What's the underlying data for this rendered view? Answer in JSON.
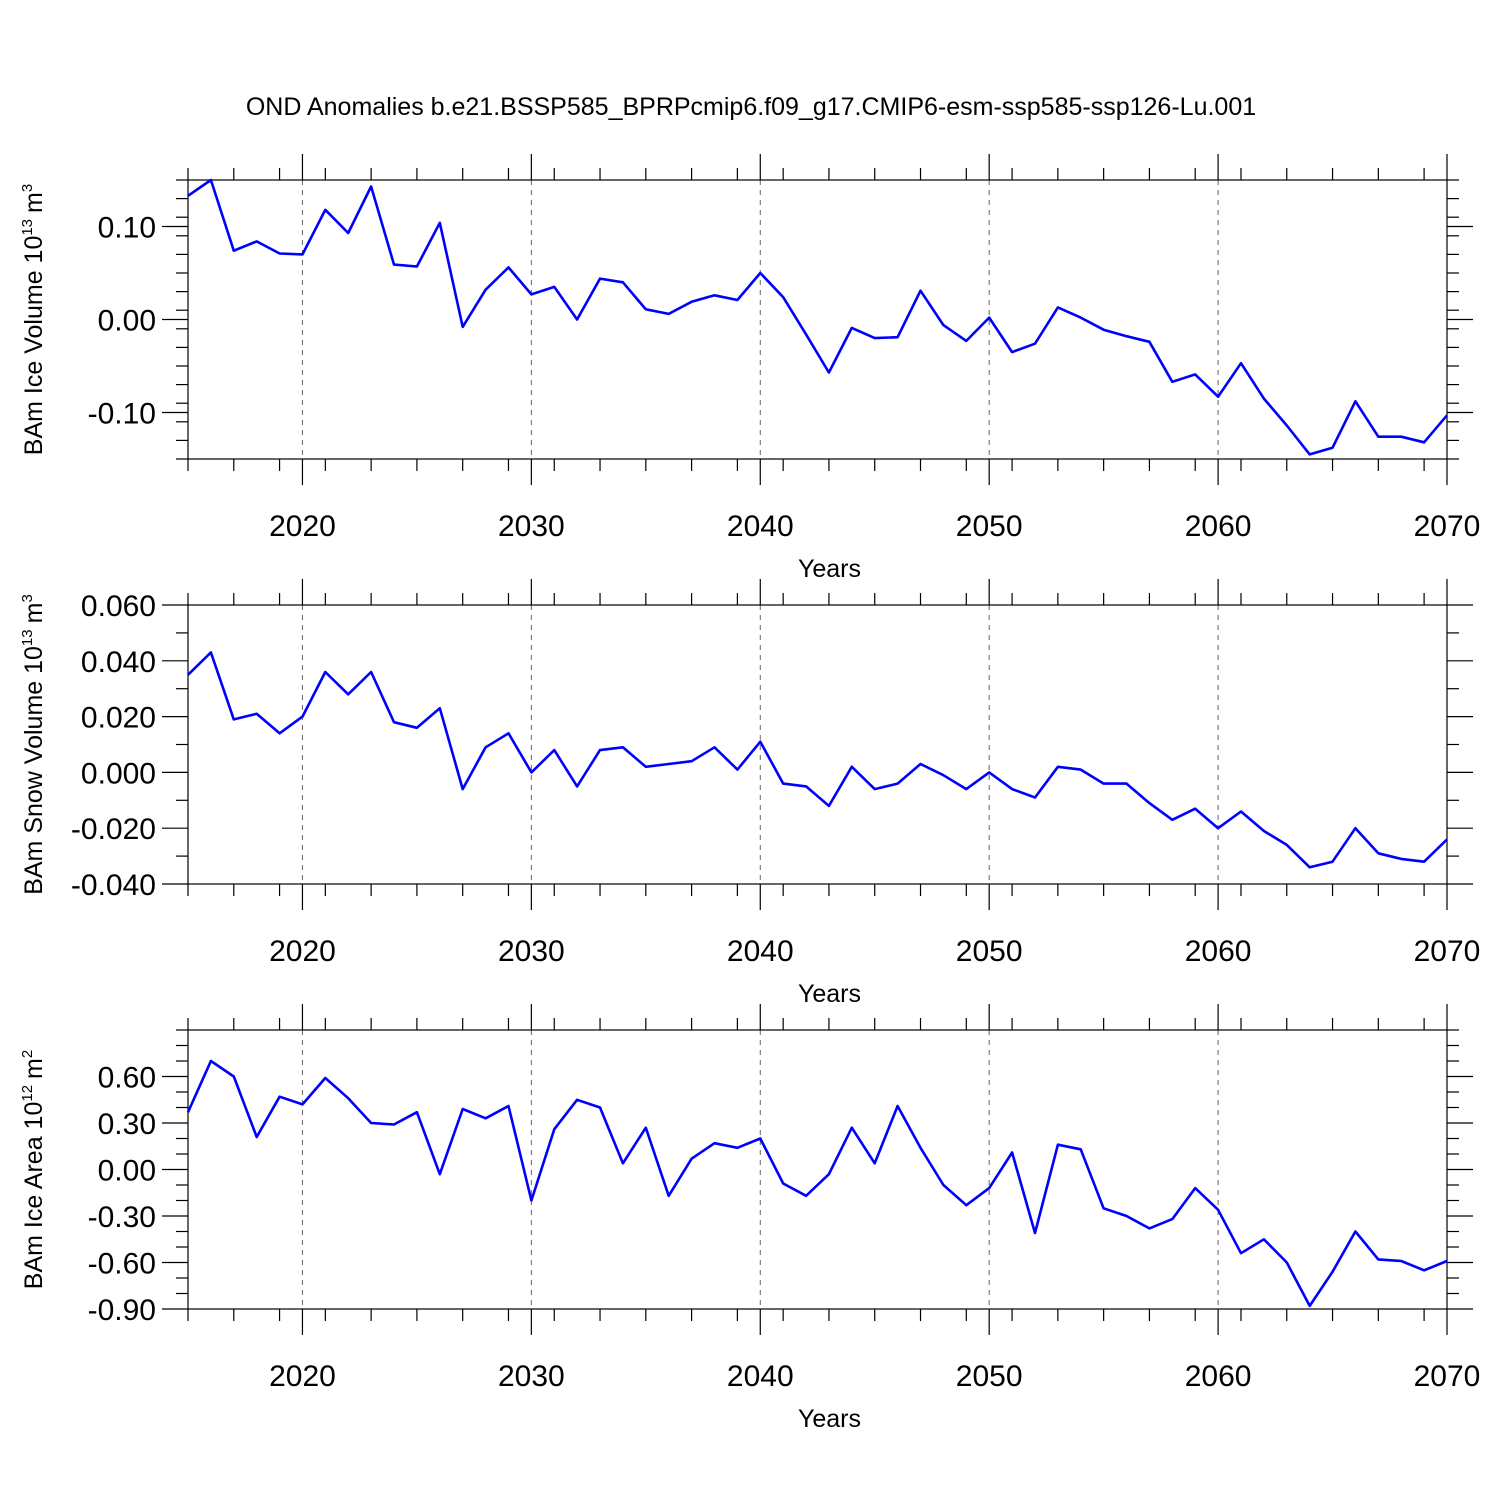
{
  "figure": {
    "title": "OND Anomalies b.e21.BSSP585_BPRPcmip6.f09_g17.CMIP6-esm-ssp585-ssp126-Lu.001"
  },
  "colors": {
    "line": "#0000ff",
    "frame": "#000000"
  },
  "chart_data": [
    {
      "type": "line",
      "title": "OND Anomalies b.e21.BSSP585_BPRPcmip6.f09_g17.CMIP6-esm-ssp585-ssp126-Lu.001",
      "xlabel": "Years",
      "ylabel": "BAm Ice Volume 10",
      "ylabel_exp": "13",
      "ylabel_unit": "m",
      "ylabel_unit_exp": "3",
      "xlim": [
        2015,
        2070
      ],
      "ylim": [
        -0.15,
        0.15
      ],
      "x_ticks": [
        2020,
        2030,
        2040,
        2050,
        2060,
        2070
      ],
      "y_ticks": [
        -0.1,
        0.0,
        0.1
      ],
      "y_tick_labels": [
        "-0.10",
        "0.00",
        "0.10"
      ],
      "y_minor_step": 0.02,
      "grid": "vertical dashed at major x ticks",
      "x": [
        2015,
        2016,
        2017,
        2018,
        2019,
        2020,
        2021,
        2022,
        2023,
        2024,
        2025,
        2026,
        2027,
        2028,
        2029,
        2030,
        2031,
        2032,
        2033,
        2034,
        2035,
        2036,
        2037,
        2038,
        2039,
        2040,
        2041,
        2042,
        2043,
        2044,
        2045,
        2046,
        2047,
        2048,
        2049,
        2050,
        2051,
        2052,
        2053,
        2054,
        2055,
        2056,
        2057,
        2058,
        2059,
        2060,
        2061,
        2062,
        2063,
        2064,
        2065,
        2066,
        2067,
        2068,
        2069,
        2070
      ],
      "series": [
        {
          "values": [
            0.133,
            0.15,
            0.074,
            0.084,
            0.071,
            0.07,
            0.118,
            0.093,
            0.143,
            0.059,
            0.057,
            0.104,
            -0.008,
            0.032,
            0.056,
            0.027,
            0.035,
            0.0,
            0.044,
            0.04,
            0.011,
            0.006,
            0.019,
            0.026,
            0.021,
            0.05,
            0.024,
            -0.016,
            -0.057,
            -0.009,
            -0.02,
            -0.019,
            0.031,
            -0.006,
            -0.023,
            0.002,
            -0.035,
            -0.026,
            0.013,
            0.002,
            -0.011,
            -0.018,
            -0.024,
            -0.067,
            -0.059,
            -0.083,
            -0.047,
            -0.085,
            -0.114,
            -0.145,
            -0.138,
            -0.088,
            -0.126,
            -0.126,
            -0.132,
            -0.103
          ]
        }
      ]
    },
    {
      "type": "line",
      "xlabel": "Years",
      "ylabel": "BAm Snow Volume 10",
      "ylabel_exp": "13",
      "ylabel_unit": "m",
      "ylabel_unit_exp": "3",
      "xlim": [
        2015,
        2070
      ],
      "ylim": [
        -0.04,
        0.06
      ],
      "x_ticks": [
        2020,
        2030,
        2040,
        2050,
        2060,
        2070
      ],
      "y_ticks": [
        -0.04,
        -0.02,
        0.0,
        0.02,
        0.04,
        0.06
      ],
      "y_tick_labels": [
        "-0.040",
        "-0.020",
        "0.000",
        "0.020",
        "0.040",
        "0.060"
      ],
      "y_minor_step": 0.01,
      "grid": "vertical dashed at major x ticks",
      "x": [
        2015,
        2016,
        2017,
        2018,
        2019,
        2020,
        2021,
        2022,
        2023,
        2024,
        2025,
        2026,
        2027,
        2028,
        2029,
        2030,
        2031,
        2032,
        2033,
        2034,
        2035,
        2036,
        2037,
        2038,
        2039,
        2040,
        2041,
        2042,
        2043,
        2044,
        2045,
        2046,
        2047,
        2048,
        2049,
        2050,
        2051,
        2052,
        2053,
        2054,
        2055,
        2056,
        2057,
        2058,
        2059,
        2060,
        2061,
        2062,
        2063,
        2064,
        2065,
        2066,
        2067,
        2068,
        2069,
        2070
      ],
      "series": [
        {
          "values": [
            0.035,
            0.043,
            0.019,
            0.021,
            0.014,
            0.02,
            0.036,
            0.028,
            0.036,
            0.018,
            0.016,
            0.023,
            -0.006,
            0.009,
            0.014,
            0.0,
            0.008,
            -0.005,
            0.008,
            0.009,
            0.002,
            0.003,
            0.004,
            0.009,
            0.001,
            0.011,
            -0.004,
            -0.005,
            -0.012,
            0.002,
            -0.006,
            -0.004,
            0.003,
            -0.001,
            -0.006,
            0.0,
            -0.006,
            -0.009,
            0.002,
            0.001,
            -0.004,
            -0.004,
            -0.011,
            -0.017,
            -0.013,
            -0.02,
            -0.014,
            -0.021,
            -0.026,
            -0.034,
            -0.032,
            -0.02,
            -0.029,
            -0.031,
            -0.032,
            -0.024
          ]
        }
      ]
    },
    {
      "type": "line",
      "xlabel": "Years",
      "ylabel": "BAm Ice Area 10",
      "ylabel_exp": "12",
      "ylabel_unit": "m",
      "ylabel_unit_exp": "2",
      "xlim": [
        2015,
        2070
      ],
      "ylim": [
        -0.9,
        0.9
      ],
      "x_ticks": [
        2020,
        2030,
        2040,
        2050,
        2060,
        2070
      ],
      "y_ticks": [
        -0.9,
        -0.6,
        -0.3,
        0.0,
        0.3,
        0.6
      ],
      "y_tick_labels": [
        "-0.90",
        "-0.60",
        "-0.30",
        "0.00",
        "0.30",
        "0.60"
      ],
      "y_minor_step": 0.1,
      "grid": "vertical dashed at major x ticks",
      "x": [
        2015,
        2016,
        2017,
        2018,
        2019,
        2020,
        2021,
        2022,
        2023,
        2024,
        2025,
        2026,
        2027,
        2028,
        2029,
        2030,
        2031,
        2032,
        2033,
        2034,
        2035,
        2036,
        2037,
        2038,
        2039,
        2040,
        2041,
        2042,
        2043,
        2044,
        2045,
        2046,
        2047,
        2048,
        2049,
        2050,
        2051,
        2052,
        2053,
        2054,
        2055,
        2056,
        2057,
        2058,
        2059,
        2060,
        2061,
        2062,
        2063,
        2064,
        2065,
        2066,
        2067,
        2068,
        2069,
        2070
      ],
      "series": [
        {
          "values": [
            0.37,
            0.7,
            0.6,
            0.21,
            0.47,
            0.42,
            0.59,
            0.46,
            0.3,
            0.29,
            0.37,
            -0.03,
            0.39,
            0.33,
            0.41,
            -0.2,
            0.26,
            0.45,
            0.4,
            0.04,
            0.27,
            -0.17,
            0.07,
            0.17,
            0.14,
            0.2,
            -0.09,
            -0.17,
            -0.03,
            0.27,
            0.04,
            0.41,
            0.14,
            -0.1,
            -0.23,
            -0.12,
            0.11,
            -0.41,
            0.16,
            0.13,
            -0.25,
            -0.3,
            -0.38,
            -0.32,
            -0.12,
            -0.26,
            -0.54,
            -0.45,
            -0.6,
            -0.88,
            -0.66,
            -0.4,
            -0.58,
            -0.59,
            -0.65,
            -0.59
          ]
        }
      ]
    }
  ]
}
